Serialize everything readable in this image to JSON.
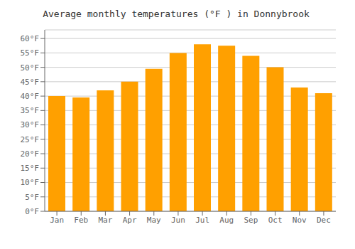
{
  "chart_data": {
    "type": "bar",
    "title": "Average monthly temperatures (°F ) in Donnybrook",
    "categories": [
      "Jan",
      "Feb",
      "Mar",
      "Apr",
      "May",
      "Jun",
      "Jul",
      "Aug",
      "Sep",
      "Oct",
      "Nov",
      "Dec"
    ],
    "values": [
      40,
      39.5,
      42,
      45,
      49.5,
      55,
      58,
      57.5,
      54,
      50,
      43,
      41
    ],
    "color": "#FFA000",
    "ylim": [
      0,
      63
    ],
    "yticks": [
      {
        "value": 0,
        "label": "0°F"
      },
      {
        "value": 5,
        "label": "5°F"
      },
      {
        "value": 10,
        "label": "10°F"
      },
      {
        "value": 15,
        "label": "15°F"
      },
      {
        "value": 20,
        "label": "20°F"
      },
      {
        "value": 25,
        "label": "25°F"
      },
      {
        "value": 30,
        "label": "30°F"
      },
      {
        "value": 35,
        "label": "35°F"
      },
      {
        "value": 40,
        "label": "40°F"
      },
      {
        "value": 45,
        "label": "45°F"
      },
      {
        "value": 50,
        "label": "50°F"
      },
      {
        "value": 55,
        "label": "55°F"
      },
      {
        "value": 60,
        "label": "60°F"
      }
    ],
    "grid": true
  }
}
